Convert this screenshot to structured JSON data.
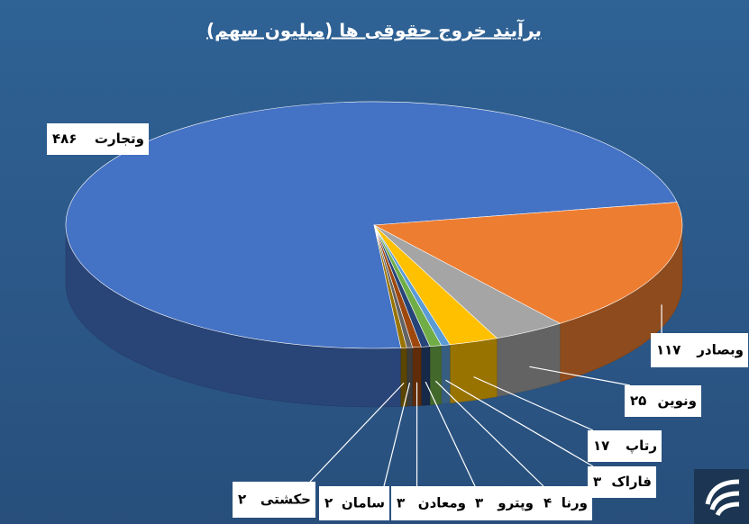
{
  "chart_data": {
    "type": "pie3d",
    "title": "برآیند خروج حقوقی ها (میلیون سهم)",
    "categories": [
      "وتجارت",
      "وبصادر",
      "ونوین",
      "رتاپ",
      "فاراک",
      "ورنا",
      "وپترو",
      "ومعادن",
      "سامان",
      "حکشتی"
    ],
    "values": [
      486,
      117,
      25,
      17,
      3,
      4,
      3,
      3,
      2,
      2
    ],
    "value_labels": [
      "۴۸۶",
      "۱۱۷",
      "۲۵",
      "۱۷",
      "۳",
      "۴",
      "۳",
      "۳",
      "۲",
      "۲"
    ],
    "colors": [
      "#4472c4",
      "#ed7d31",
      "#a5a5a5",
      "#ffc000",
      "#5b9bd5",
      "#70ad47",
      "#264478",
      "#9e480e",
      "#636363",
      "#997300"
    ]
  }
}
